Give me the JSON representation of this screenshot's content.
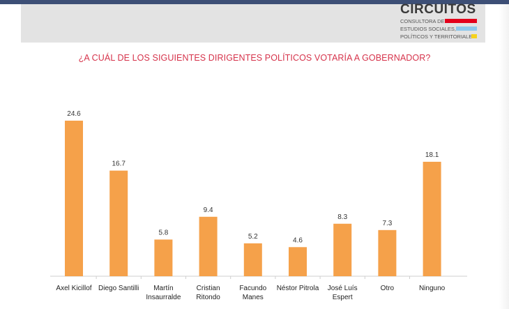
{
  "logo": {
    "name": "CIRCUITOS",
    "line1": "CONSULTORA DE",
    "line2": "ESTUDIOS SOCIALES,",
    "line3": "POLÍTICOS Y TERRITORIALES",
    "colors": {
      "red": "#e3001b",
      "blue": "#8dc8ec",
      "yellow": "#f6d21c"
    }
  },
  "chart_data": {
    "type": "bar",
    "title": "¿A CUÁL DE LOS SIGUIENTES DIRIGENTES POLÍTICOS VOTARÍA A GOBERNADOR?",
    "categories": [
      [
        "Axel Kicillof"
      ],
      [
        "Diego Santilli"
      ],
      [
        "Martín",
        "Insaurralde"
      ],
      [
        "Cristian",
        "Ritondo"
      ],
      [
        "Facundo",
        "Manes"
      ],
      [
        "Néstor Pitrola"
      ],
      [
        "José Luís",
        "Espert"
      ],
      [
        "Otro"
      ],
      [
        "Ninguno"
      ]
    ],
    "values": [
      24.6,
      16.7,
      5.8,
      9.4,
      5.2,
      4.6,
      8.3,
      7.3,
      18.1
    ],
    "value_labels": [
      "24.6",
      "16.7",
      "5.8",
      "9.4",
      "5.2",
      "4.6",
      "8.3",
      "7.3",
      "18.1"
    ],
    "ylim": [
      0,
      24.6
    ],
    "bar_color": "#f5a14a",
    "grid": false,
    "legend": "none"
  }
}
